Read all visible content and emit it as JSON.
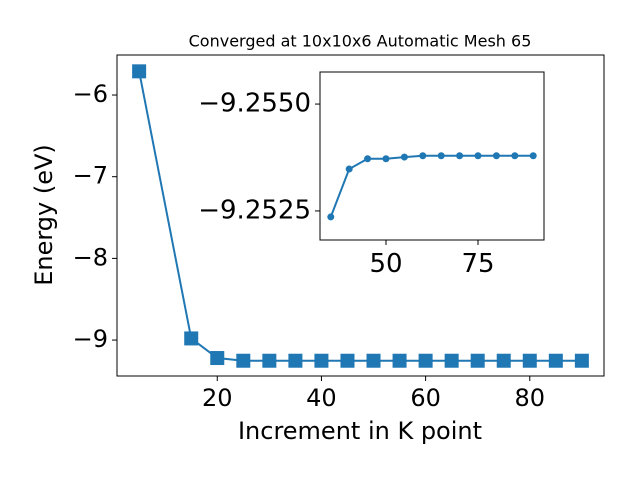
{
  "chart_data": [
    {
      "type": "line",
      "title": "Converged at 10x10x6 Automatic Mesh 65",
      "x_label": "Increment in K point",
      "y_label": "Energy (eV)",
      "x": [
        5,
        15,
        20,
        25,
        30,
        35,
        40,
        45,
        50,
        55,
        60,
        65,
        70,
        75,
        80,
        85,
        90
      ],
      "series": [
        {
          "color": "#1f77b4",
          "marker": "square",
          "values": [
            -5.71,
            -8.98,
            -9.22,
            -9.253,
            -9.253,
            -9.253,
            -9.253,
            -9.253,
            -9.253,
            -9.253,
            -9.253,
            -9.253,
            -9.253,
            -9.253,
            -9.253,
            -9.253,
            -9.253
          ]
        }
      ],
      "xlim": [
        0.75,
        94.25
      ],
      "ylim": [
        -9.44,
        -5.51
      ],
      "xticks": [
        20,
        40,
        60,
        80
      ],
      "yticks": [
        {
          "value": -9,
          "label": "−9"
        },
        {
          "value": -8,
          "label": "−8"
        },
        {
          "value": -7,
          "label": "−7"
        },
        {
          "value": -6,
          "label": "−6"
        }
      ]
    },
    {
      "type": "line",
      "x": [
        35,
        40,
        45,
        50,
        55,
        60,
        65,
        70,
        75,
        80,
        85,
        90
      ],
      "series": [
        {
          "color": "#1f77b4",
          "marker": "circle",
          "values": [
            -9.25236,
            -9.25348,
            -9.25372,
            -9.25372,
            -9.25376,
            -9.25379,
            -9.25379,
            -9.25379,
            -9.25379,
            -9.25379,
            -9.25379,
            -9.25379
          ]
        }
      ],
      "xlim": [
        32.07,
        92.93
      ],
      "ylim": [
        -9.25182,
        -9.25575
      ],
      "xticks": [
        50,
        75
      ],
      "yticks": [
        {
          "value": -9.2525,
          "label": "−9.2525"
        },
        {
          "value": -9.255,
          "label": "−9.2550"
        }
      ]
    }
  ]
}
